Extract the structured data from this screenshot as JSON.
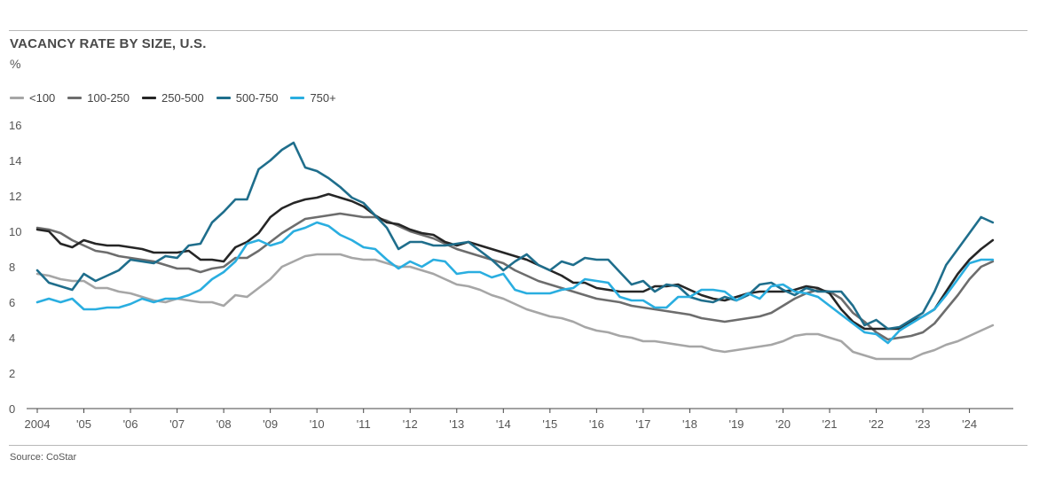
{
  "source": "Source: CoStar",
  "chart_data": {
    "type": "line",
    "title": "VACANCY RATE BY SIZE, U.S.",
    "ylabel": "%",
    "xlabel": "",
    "ylim": [
      0,
      16
    ],
    "yticks": [
      0,
      2,
      4,
      6,
      8,
      10,
      12,
      14,
      16
    ],
    "xlim": [
      2004,
      2024.75
    ],
    "xticks": [
      {
        "value": 2004,
        "label": "2004"
      },
      {
        "value": 2005,
        "label": "'05"
      },
      {
        "value": 2006,
        "label": "'06"
      },
      {
        "value": 2007,
        "label": "'07"
      },
      {
        "value": 2008,
        "label": "'08"
      },
      {
        "value": 2009,
        "label": "'09"
      },
      {
        "value": 2010,
        "label": "'10"
      },
      {
        "value": 2011,
        "label": "'11"
      },
      {
        "value": 2012,
        "label": "'12"
      },
      {
        "value": 2013,
        "label": "'13"
      },
      {
        "value": 2014,
        "label": "'14"
      },
      {
        "value": 2015,
        "label": "'15"
      },
      {
        "value": 2016,
        "label": "'16"
      },
      {
        "value": 2017,
        "label": "'17"
      },
      {
        "value": 2018,
        "label": "'18"
      },
      {
        "value": 2019,
        "label": "'19"
      },
      {
        "value": 2020,
        "label": "'20"
      },
      {
        "value": 2021,
        "label": "'21"
      },
      {
        "value": 2022,
        "label": "'22"
      },
      {
        "value": 2023,
        "label": "'23"
      },
      {
        "value": 2024,
        "label": "'24"
      }
    ],
    "grid": false,
    "legend": "top-left",
    "x": [
      2004,
      2004.25,
      2004.5,
      2004.75,
      2005,
      2005.25,
      2005.5,
      2005.75,
      2006,
      2006.25,
      2006.5,
      2006.75,
      2007,
      2007.25,
      2007.5,
      2007.75,
      2008,
      2008.25,
      2008.5,
      2008.75,
      2009,
      2009.25,
      2009.5,
      2009.75,
      2010,
      2010.25,
      2010.5,
      2010.75,
      2011,
      2011.25,
      2011.5,
      2011.75,
      2012,
      2012.25,
      2012.5,
      2012.75,
      2013,
      2013.25,
      2013.5,
      2013.75,
      2014,
      2014.25,
      2014.5,
      2014.75,
      2015,
      2015.25,
      2015.5,
      2015.75,
      2016,
      2016.25,
      2016.5,
      2016.75,
      2017,
      2017.25,
      2017.5,
      2017.75,
      2018,
      2018.25,
      2018.5,
      2018.75,
      2019,
      2019.25,
      2019.5,
      2019.75,
      2020,
      2020.25,
      2020.5,
      2020.75,
      2021,
      2021.25,
      2021.5,
      2021.75,
      2022,
      2022.25,
      2022.5,
      2022.75,
      2023,
      2023.25,
      2023.5,
      2023.75,
      2024,
      2024.25,
      2024.5
    ],
    "series": [
      {
        "name": "<100",
        "color": "#a6a6a6",
        "values": [
          7.6,
          7.5,
          7.3,
          7.2,
          7.2,
          6.8,
          6.8,
          6.6,
          6.5,
          6.3,
          6.1,
          6.0,
          6.2,
          6.1,
          6.0,
          6.0,
          5.8,
          6.4,
          6.3,
          6.8,
          7.3,
          8.0,
          8.3,
          8.6,
          8.7,
          8.7,
          8.7,
          8.5,
          8.4,
          8.4,
          8.2,
          8.0,
          8.0,
          7.8,
          7.6,
          7.3,
          7.0,
          6.9,
          6.7,
          6.4,
          6.2,
          5.9,
          5.6,
          5.4,
          5.2,
          5.1,
          4.9,
          4.6,
          4.4,
          4.3,
          4.1,
          4.0,
          3.8,
          3.8,
          3.7,
          3.6,
          3.5,
          3.5,
          3.3,
          3.2,
          3.3,
          3.4,
          3.5,
          3.6,
          3.8,
          4.1,
          4.2,
          4.2,
          4.0,
          3.8,
          3.2,
          3.0,
          2.8,
          2.8,
          2.8,
          2.8,
          3.1,
          3.3,
          3.6,
          3.8,
          4.1,
          4.4,
          4.7
        ]
      },
      {
        "name": "100-250",
        "color": "#6d6d6d",
        "values": [
          10.2,
          10.1,
          9.9,
          9.5,
          9.2,
          8.9,
          8.8,
          8.6,
          8.5,
          8.4,
          8.3,
          8.1,
          7.9,
          7.9,
          7.7,
          7.9,
          8.0,
          8.5,
          8.5,
          8.9,
          9.4,
          9.9,
          10.3,
          10.7,
          10.8,
          10.9,
          11.0,
          10.9,
          10.8,
          10.8,
          10.6,
          10.3,
          10.0,
          9.8,
          9.6,
          9.3,
          9.0,
          8.8,
          8.6,
          8.4,
          8.2,
          7.8,
          7.5,
          7.2,
          7.0,
          6.8,
          6.6,
          6.4,
          6.2,
          6.1,
          6.0,
          5.8,
          5.7,
          5.6,
          5.5,
          5.4,
          5.3,
          5.1,
          5.0,
          4.9,
          5.0,
          5.1,
          5.2,
          5.4,
          5.8,
          6.2,
          6.5,
          6.7,
          6.6,
          6.2,
          5.4,
          4.9,
          4.3,
          3.9,
          4.0,
          4.1,
          4.3,
          4.8,
          5.6,
          6.4,
          7.3,
          8.0,
          8.3
        ]
      },
      {
        "name": "250-500",
        "color": "#262626",
        "values": [
          10.1,
          10.0,
          9.3,
          9.1,
          9.5,
          9.3,
          9.2,
          9.2,
          9.1,
          9.0,
          8.8,
          8.8,
          8.8,
          8.9,
          8.4,
          8.4,
          8.3,
          9.1,
          9.4,
          9.9,
          10.8,
          11.3,
          11.6,
          11.8,
          11.9,
          12.1,
          11.9,
          11.7,
          11.4,
          10.9,
          10.5,
          10.4,
          10.1,
          9.9,
          9.8,
          9.4,
          9.2,
          9.4,
          9.2,
          9.0,
          8.8,
          8.6,
          8.4,
          8.1,
          7.8,
          7.5,
          7.1,
          7.1,
          6.8,
          6.7,
          6.6,
          6.6,
          6.6,
          6.9,
          6.9,
          7.0,
          6.7,
          6.4,
          6.2,
          6.1,
          6.3,
          6.5,
          6.6,
          6.6,
          6.6,
          6.7,
          6.9,
          6.8,
          6.5,
          5.6,
          4.9,
          4.5,
          4.5,
          4.5,
          4.5,
          4.9,
          5.2,
          5.6,
          6.6,
          7.6,
          8.4,
          9.0,
          9.5
        ]
      },
      {
        "name": "500-750",
        "color": "#1f6e8c",
        "values": [
          7.8,
          7.1,
          6.9,
          6.7,
          7.6,
          7.2,
          7.5,
          7.8,
          8.4,
          8.3,
          8.2,
          8.6,
          8.5,
          9.2,
          9.3,
          10.5,
          11.1,
          11.8,
          11.8,
          13.5,
          14.0,
          14.6,
          15.0,
          13.6,
          13.4,
          13.0,
          12.5,
          11.9,
          11.6,
          10.9,
          10.2,
          9.0,
          9.4,
          9.4,
          9.2,
          9.2,
          9.3,
          9.4,
          8.9,
          8.4,
          7.8,
          8.3,
          8.7,
          8.1,
          7.8,
          8.3,
          8.1,
          8.5,
          8.4,
          8.4,
          7.7,
          7.0,
          7.2,
          6.6,
          7.0,
          6.9,
          6.3,
          6.1,
          6.0,
          6.3,
          6.1,
          6.4,
          7.0,
          7.1,
          6.7,
          6.4,
          6.8,
          6.6,
          6.6,
          6.6,
          5.8,
          4.7,
          5.0,
          4.5,
          4.6,
          5.0,
          5.4,
          6.6,
          8.1,
          9.0,
          9.9,
          10.8,
          10.5
        ]
      },
      {
        "name": "750+",
        "color": "#2aaee0",
        "values": [
          6.0,
          6.2,
          6.0,
          6.2,
          5.6,
          5.6,
          5.7,
          5.7,
          5.9,
          6.2,
          6.0,
          6.2,
          6.2,
          6.4,
          6.7,
          7.3,
          7.7,
          8.3,
          9.3,
          9.5,
          9.2,
          9.4,
          10.0,
          10.2,
          10.5,
          10.3,
          9.8,
          9.5,
          9.1,
          9.0,
          8.4,
          7.9,
          8.3,
          8.0,
          8.4,
          8.3,
          7.6,
          7.7,
          7.7,
          7.4,
          7.6,
          6.7,
          6.5,
          6.5,
          6.5,
          6.7,
          6.8,
          7.3,
          7.2,
          7.1,
          6.3,
          6.1,
          6.1,
          5.7,
          5.7,
          6.3,
          6.3,
          6.7,
          6.7,
          6.6,
          6.1,
          6.5,
          6.2,
          6.9,
          7.0,
          6.6,
          6.5,
          6.3,
          5.8,
          5.3,
          4.8,
          4.3,
          4.2,
          3.7,
          4.4,
          4.8,
          5.2,
          5.6,
          6.4,
          7.3,
          8.2,
          8.4,
          8.4
        ]
      }
    ]
  }
}
